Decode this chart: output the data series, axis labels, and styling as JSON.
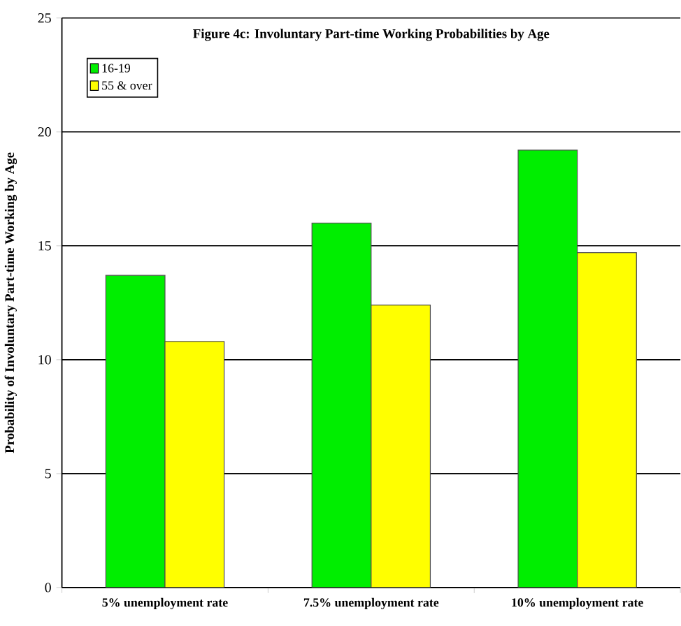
{
  "chart_data": {
    "type": "bar",
    "title": "Figure 4c: Involuntary Part-time Working Probabilities by Age",
    "ylabel": "Probability of Involuntary Part-time Working by Age",
    "categories": [
      "5%  unemployment rate",
      "7.5% unemployment rate",
      "10% unemployment rate"
    ],
    "series": [
      {
        "name": "16-19",
        "color": "#00ee00",
        "values": [
          13.7,
          16.0,
          19.2
        ]
      },
      {
        "name": "55 & over",
        "color": "#ffff00",
        "values": [
          10.8,
          12.4,
          14.7
        ]
      }
    ],
    "ylim": [
      0,
      25
    ],
    "yticks": [
      0,
      5,
      10,
      15,
      20,
      25
    ],
    "grid": "y",
    "legend": "top left"
  }
}
